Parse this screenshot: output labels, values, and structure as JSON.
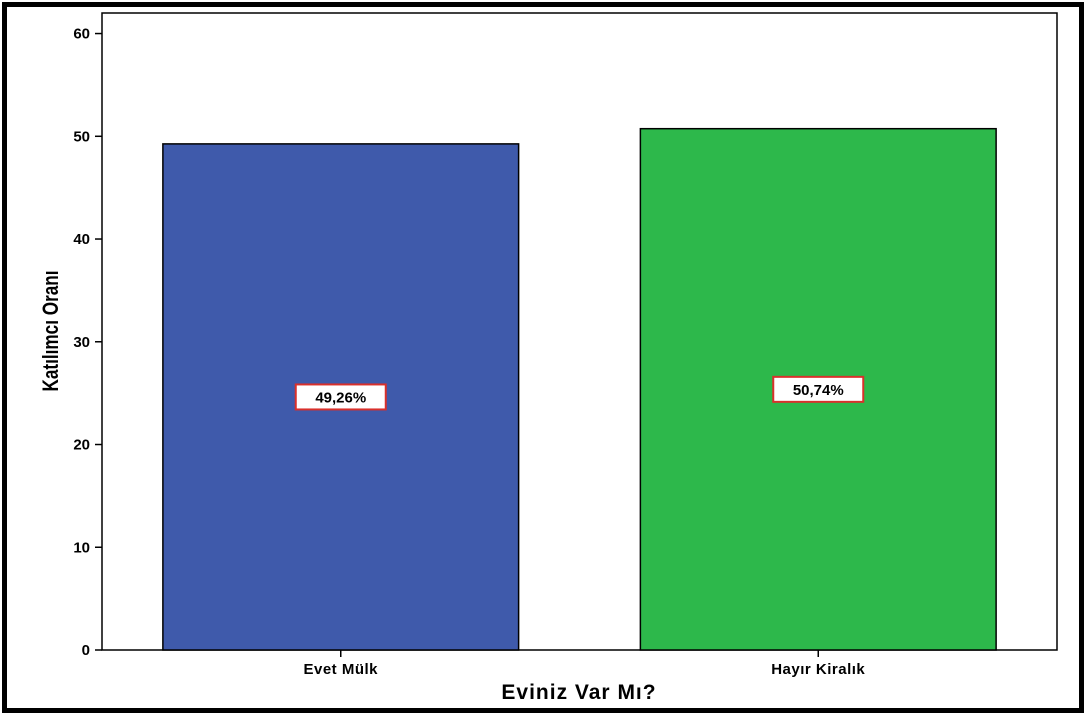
{
  "chart_data": {
    "type": "bar",
    "categories": [
      "Evet Mülk",
      "Hayır Kiralık"
    ],
    "values": [
      49.26,
      50.74
    ],
    "data_labels": [
      "49,26%",
      "50,74%"
    ],
    "colors": [
      "#3f5aab",
      "#2db84b"
    ],
    "title": "",
    "xlabel": "Eviniz Var Mı?",
    "ylabel": "Katılımcı Oranı",
    "ylim": [
      0,
      62
    ],
    "yticks": [
      0,
      10,
      20,
      30,
      40,
      50,
      60
    ],
    "ytick_labels": [
      "0",
      "10",
      "20",
      "30",
      "40",
      "50",
      "60"
    ],
    "grid": false,
    "data_label_border_color": "#d9302b"
  }
}
